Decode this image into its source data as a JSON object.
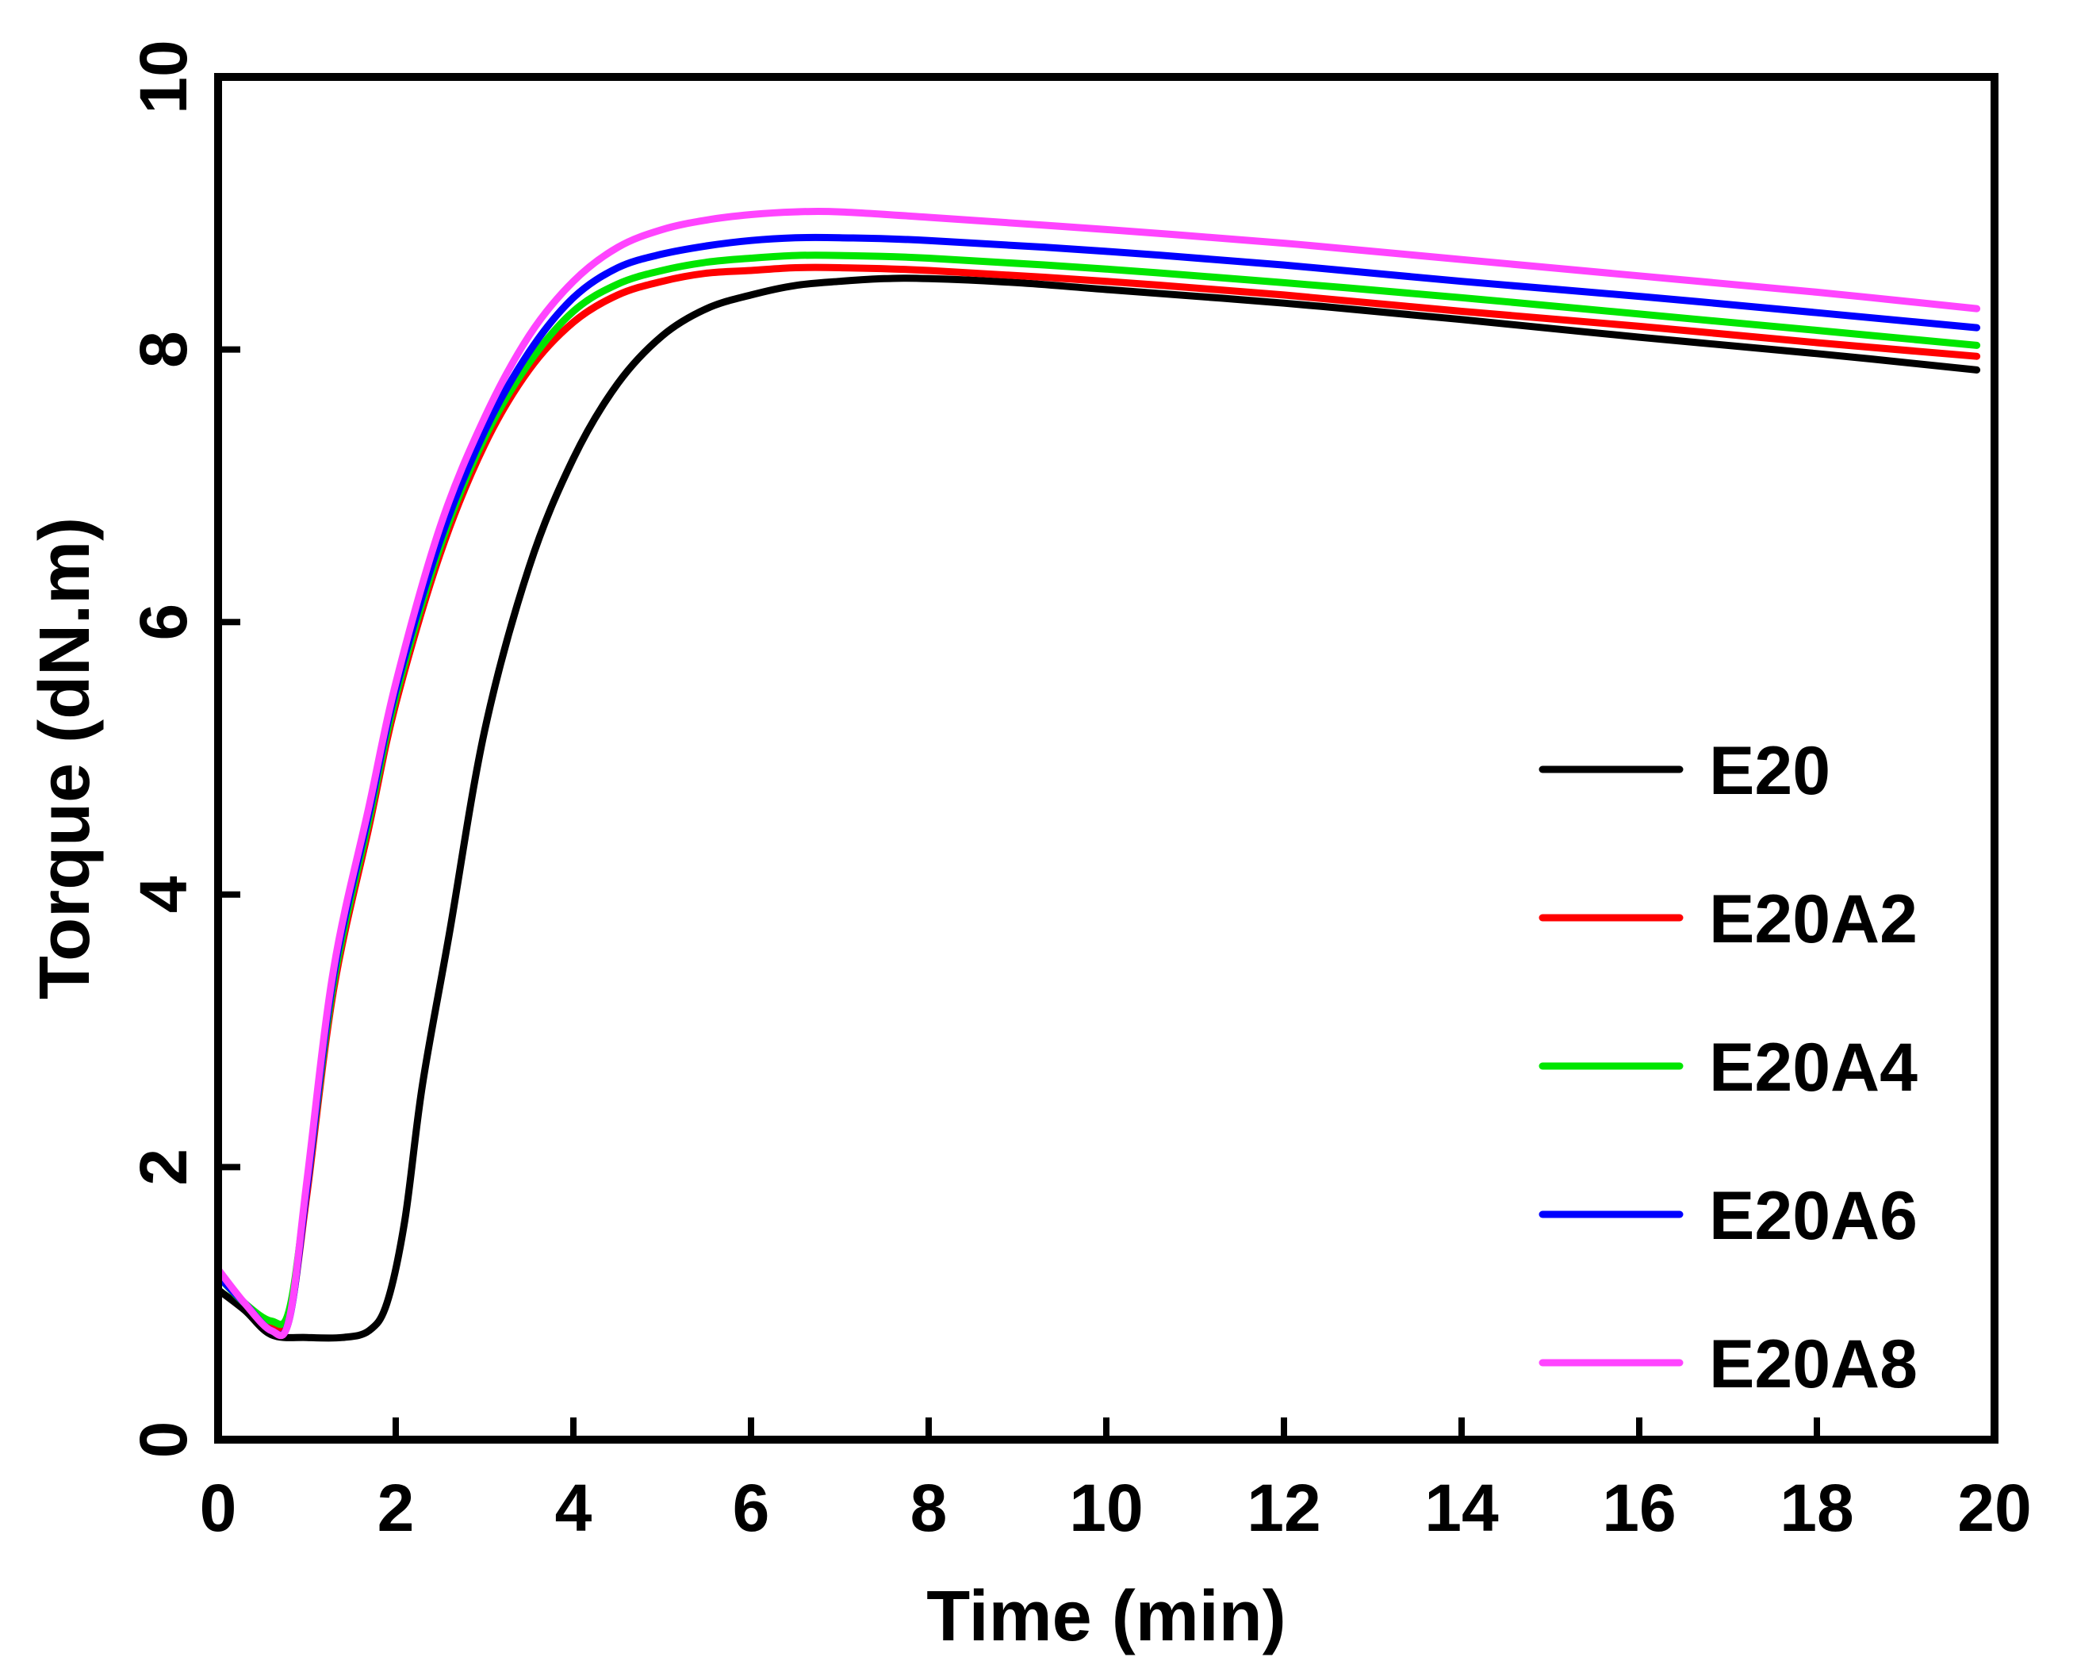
{
  "chart_data": {
    "type": "line",
    "title": "",
    "xlabel": "Time (min)",
    "ylabel": "Torque (dN.m)",
    "xlim": [
      0,
      20
    ],
    "ylim": [
      0,
      10
    ],
    "xticks": [
      0,
      2,
      4,
      6,
      8,
      10,
      12,
      14,
      16,
      18,
      20
    ],
    "yticks": [
      0,
      2,
      4,
      6,
      8,
      10
    ],
    "grid": false,
    "legend_position": "right",
    "series": [
      {
        "name": "E20",
        "color": "#000000",
        "points": [
          [
            0,
            1.1
          ],
          [
            0.3,
            0.95
          ],
          [
            0.6,
            0.77
          ],
          [
            1.0,
            0.75
          ],
          [
            1.4,
            0.75
          ],
          [
            1.7,
            0.8
          ],
          [
            1.9,
            1.0
          ],
          [
            2.1,
            1.6
          ],
          [
            2.3,
            2.6
          ],
          [
            2.6,
            3.7
          ],
          [
            3.0,
            5.2
          ],
          [
            3.5,
            6.4
          ],
          [
            4.0,
            7.2
          ],
          [
            4.5,
            7.75
          ],
          [
            5.0,
            8.1
          ],
          [
            5.5,
            8.3
          ],
          [
            6.0,
            8.4
          ],
          [
            6.5,
            8.47
          ],
          [
            7.0,
            8.5
          ],
          [
            7.5,
            8.52
          ],
          [
            8.0,
            8.52
          ],
          [
            9.0,
            8.49
          ],
          [
            10.0,
            8.44
          ],
          [
            12.0,
            8.34
          ],
          [
            14.0,
            8.22
          ],
          [
            16.0,
            8.09
          ],
          [
            18.0,
            7.97
          ],
          [
            19.8,
            7.85
          ]
        ]
      },
      {
        "name": "E20A2",
        "color": "#ff0000",
        "points": [
          [
            0,
            1.2
          ],
          [
            0.3,
            1.0
          ],
          [
            0.6,
            0.83
          ],
          [
            0.8,
            0.9
          ],
          [
            1.0,
            1.8
          ],
          [
            1.3,
            3.3
          ],
          [
            1.7,
            4.5
          ],
          [
            2.0,
            5.4
          ],
          [
            2.5,
            6.5
          ],
          [
            3.0,
            7.3
          ],
          [
            3.5,
            7.85
          ],
          [
            4.0,
            8.2
          ],
          [
            4.5,
            8.4
          ],
          [
            5.0,
            8.5
          ],
          [
            5.5,
            8.56
          ],
          [
            6.0,
            8.58
          ],
          [
            6.5,
            8.6
          ],
          [
            7.0,
            8.6
          ],
          [
            8.0,
            8.58
          ],
          [
            10.0,
            8.5
          ],
          [
            12.0,
            8.4
          ],
          [
            14.0,
            8.28
          ],
          [
            16.0,
            8.17
          ],
          [
            18.0,
            8.05
          ],
          [
            19.8,
            7.95
          ]
        ]
      },
      {
        "name": "E20A4",
        "color": "#00e600",
        "points": [
          [
            0,
            1.2
          ],
          [
            0.3,
            1.0
          ],
          [
            0.6,
            0.87
          ],
          [
            0.8,
            0.95
          ],
          [
            1.0,
            1.85
          ],
          [
            1.3,
            3.35
          ],
          [
            1.7,
            4.55
          ],
          [
            2.0,
            5.45
          ],
          [
            2.5,
            6.55
          ],
          [
            3.0,
            7.35
          ],
          [
            3.5,
            7.9
          ],
          [
            4.0,
            8.28
          ],
          [
            4.5,
            8.48
          ],
          [
            5.0,
            8.58
          ],
          [
            5.5,
            8.64
          ],
          [
            6.0,
            8.67
          ],
          [
            6.5,
            8.69
          ],
          [
            7.0,
            8.69
          ],
          [
            8.0,
            8.67
          ],
          [
            10.0,
            8.59
          ],
          [
            12.0,
            8.49
          ],
          [
            14.0,
            8.38
          ],
          [
            16.0,
            8.26
          ],
          [
            18.0,
            8.14
          ],
          [
            19.8,
            8.03
          ]
        ]
      },
      {
        "name": "E20A6",
        "color": "#0000ff",
        "points": [
          [
            0,
            1.2
          ],
          [
            0.3,
            1.0
          ],
          [
            0.6,
            0.8
          ],
          [
            0.8,
            0.88
          ],
          [
            1.0,
            1.85
          ],
          [
            1.3,
            3.4
          ],
          [
            1.7,
            4.6
          ],
          [
            2.0,
            5.5
          ],
          [
            2.5,
            6.6
          ],
          [
            3.0,
            7.4
          ],
          [
            3.5,
            7.98
          ],
          [
            4.0,
            8.38
          ],
          [
            4.5,
            8.6
          ],
          [
            5.0,
            8.7
          ],
          [
            5.5,
            8.76
          ],
          [
            6.0,
            8.8
          ],
          [
            6.5,
            8.82
          ],
          [
            7.0,
            8.82
          ],
          [
            8.0,
            8.8
          ],
          [
            10.0,
            8.72
          ],
          [
            12.0,
            8.62
          ],
          [
            14.0,
            8.5
          ],
          [
            16.0,
            8.39
          ],
          [
            18.0,
            8.27
          ],
          [
            19.8,
            8.16
          ]
        ]
      },
      {
        "name": "E20A8",
        "color": "#ff44ff",
        "points": [
          [
            0,
            1.25
          ],
          [
            0.3,
            1.0
          ],
          [
            0.6,
            0.8
          ],
          [
            0.8,
            0.88
          ],
          [
            1.0,
            1.9
          ],
          [
            1.3,
            3.45
          ],
          [
            1.7,
            4.65
          ],
          [
            2.0,
            5.55
          ],
          [
            2.5,
            6.7
          ],
          [
            3.0,
            7.5
          ],
          [
            3.5,
            8.1
          ],
          [
            4.0,
            8.5
          ],
          [
            4.5,
            8.75
          ],
          [
            5.0,
            8.88
          ],
          [
            5.5,
            8.95
          ],
          [
            6.0,
            8.99
          ],
          [
            6.5,
            9.01
          ],
          [
            7.0,
            9.01
          ],
          [
            8.0,
            8.97
          ],
          [
            10.0,
            8.88
          ],
          [
            12.0,
            8.78
          ],
          [
            14.0,
            8.66
          ],
          [
            16.0,
            8.54
          ],
          [
            18.0,
            8.42
          ],
          [
            19.8,
            8.3
          ]
        ]
      }
    ]
  }
}
